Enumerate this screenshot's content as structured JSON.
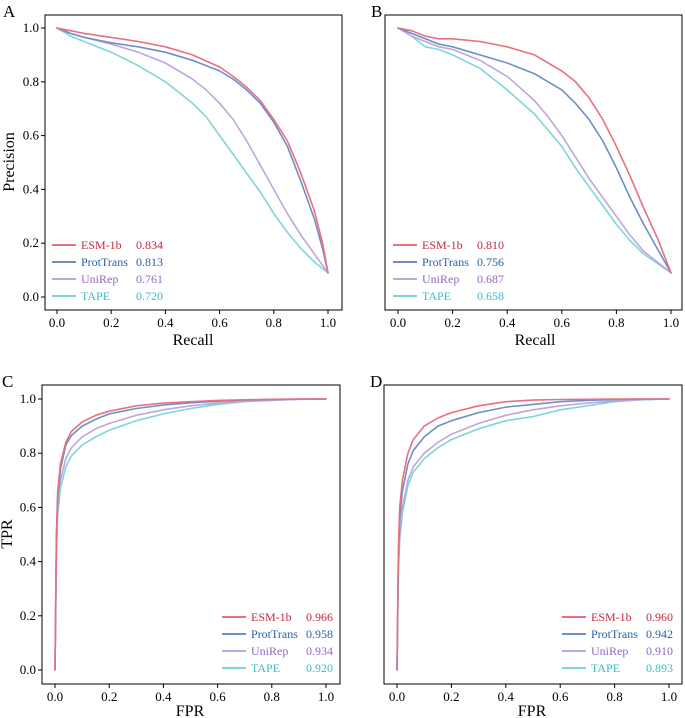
{
  "colors": {
    "ESM-1b": "#e8707f",
    "ProtTrans": "#6d8fc4",
    "UniRep": "#bda7dc",
    "TAPE": "#7fd6d9"
  },
  "label_colors": {
    "ESM-1b": "#c8283e",
    "ProtTrans": "#2c5fa8",
    "UniRep": "#9468c0",
    "TAPE": "#3bbcc4"
  },
  "chart_data": [
    {
      "panel": "A",
      "type": "line",
      "xlabel": "Recall",
      "ylabel": "Precision",
      "xlim": [
        0,
        1
      ],
      "ylim": [
        0,
        1
      ],
      "xticks": [
        "0.0",
        "0.2",
        "0.4",
        "0.6",
        "0.8",
        "1.0"
      ],
      "yticks": [
        "0.0",
        "0.2",
        "0.4",
        "0.6",
        "0.8",
        "1.0"
      ],
      "legend_position": "bottom-left",
      "series": [
        {
          "name": "ESM-1b",
          "score": "0.834",
          "x": [
            0,
            0.05,
            0.1,
            0.2,
            0.3,
            0.4,
            0.5,
            0.6,
            0.65,
            0.7,
            0.75,
            0.8,
            0.85,
            0.9,
            0.95,
            0.98,
            1.0
          ],
          "y": [
            1.0,
            0.99,
            0.98,
            0.965,
            0.95,
            0.93,
            0.9,
            0.855,
            0.82,
            0.78,
            0.73,
            0.66,
            0.58,
            0.46,
            0.32,
            0.2,
            0.09
          ]
        },
        {
          "name": "ProtTrans",
          "score": "0.813",
          "x": [
            0,
            0.05,
            0.1,
            0.2,
            0.3,
            0.4,
            0.5,
            0.6,
            0.65,
            0.7,
            0.75,
            0.8,
            0.85,
            0.9,
            0.95,
            0.98,
            1.0
          ],
          "y": [
            1.0,
            0.98,
            0.965,
            0.945,
            0.93,
            0.91,
            0.88,
            0.84,
            0.81,
            0.77,
            0.72,
            0.65,
            0.56,
            0.43,
            0.29,
            0.18,
            0.09
          ]
        },
        {
          "name": "UniRep",
          "score": "0.761",
          "x": [
            0,
            0.05,
            0.1,
            0.2,
            0.3,
            0.4,
            0.5,
            0.55,
            0.6,
            0.65,
            0.7,
            0.75,
            0.8,
            0.85,
            0.9,
            0.95,
            1.0
          ],
          "y": [
            1.0,
            0.98,
            0.965,
            0.94,
            0.91,
            0.87,
            0.81,
            0.77,
            0.72,
            0.66,
            0.58,
            0.49,
            0.4,
            0.31,
            0.23,
            0.16,
            0.09
          ]
        },
        {
          "name": "TAPE",
          "score": "0.720",
          "x": [
            0,
            0.05,
            0.1,
            0.2,
            0.3,
            0.4,
            0.5,
            0.55,
            0.6,
            0.65,
            0.7,
            0.75,
            0.8,
            0.85,
            0.9,
            0.95,
            1.0
          ],
          "y": [
            1.0,
            0.97,
            0.95,
            0.91,
            0.86,
            0.8,
            0.72,
            0.67,
            0.6,
            0.53,
            0.46,
            0.39,
            0.31,
            0.24,
            0.18,
            0.13,
            0.09
          ]
        }
      ]
    },
    {
      "panel": "B",
      "type": "line",
      "xlabel": "Recall",
      "ylabel": "",
      "xlim": [
        0,
        1
      ],
      "ylim": [
        0,
        1
      ],
      "xticks": [
        "0.0",
        "0.2",
        "0.4",
        "0.6",
        "0.8",
        "1.0"
      ],
      "yticks": [],
      "legend_position": "bottom-left",
      "series": [
        {
          "name": "ESM-1b",
          "score": "0.810",
          "x": [
            0,
            0.05,
            0.1,
            0.15,
            0.2,
            0.3,
            0.4,
            0.5,
            0.6,
            0.65,
            0.7,
            0.75,
            0.8,
            0.85,
            0.9,
            0.95,
            1.0
          ],
          "y": [
            1.0,
            0.99,
            0.97,
            0.96,
            0.96,
            0.95,
            0.93,
            0.9,
            0.84,
            0.8,
            0.74,
            0.66,
            0.56,
            0.45,
            0.33,
            0.22,
            0.09
          ]
        },
        {
          "name": "ProtTrans",
          "score": "0.756",
          "x": [
            0,
            0.05,
            0.1,
            0.15,
            0.2,
            0.3,
            0.4,
            0.5,
            0.6,
            0.65,
            0.7,
            0.75,
            0.8,
            0.85,
            0.9,
            0.95,
            1.0
          ],
          "y": [
            1.0,
            0.98,
            0.96,
            0.94,
            0.93,
            0.9,
            0.87,
            0.83,
            0.77,
            0.72,
            0.66,
            0.58,
            0.48,
            0.37,
            0.27,
            0.18,
            0.09
          ]
        },
        {
          "name": "UniRep",
          "score": "0.687",
          "x": [
            0,
            0.05,
            0.1,
            0.15,
            0.2,
            0.3,
            0.4,
            0.5,
            0.55,
            0.6,
            0.65,
            0.7,
            0.75,
            0.8,
            0.85,
            0.9,
            1.0
          ],
          "y": [
            1.0,
            0.97,
            0.95,
            0.93,
            0.92,
            0.88,
            0.82,
            0.73,
            0.67,
            0.6,
            0.52,
            0.44,
            0.37,
            0.3,
            0.23,
            0.17,
            0.09
          ]
        },
        {
          "name": "TAPE",
          "score": "0.658",
          "x": [
            0,
            0.05,
            0.1,
            0.15,
            0.2,
            0.3,
            0.4,
            0.5,
            0.55,
            0.6,
            0.65,
            0.7,
            0.75,
            0.8,
            0.85,
            0.9,
            1.0
          ],
          "y": [
            1.0,
            0.97,
            0.93,
            0.92,
            0.9,
            0.85,
            0.77,
            0.68,
            0.62,
            0.56,
            0.48,
            0.41,
            0.34,
            0.27,
            0.21,
            0.16,
            0.09
          ]
        }
      ]
    },
    {
      "panel": "C",
      "type": "line",
      "xlabel": "FPR",
      "ylabel": "TPR",
      "xlim": [
        0,
        1
      ],
      "ylim": [
        0,
        1
      ],
      "xticks": [
        "0.0",
        "0.2",
        "0.4",
        "0.6",
        "0.8",
        "1.0"
      ],
      "yticks": [
        "0.0",
        "0.2",
        "0.4",
        "0.6",
        "0.8",
        "1.0"
      ],
      "legend_position": "bottom-right",
      "series": [
        {
          "name": "ESM-1b",
          "score": "0.966",
          "x": [
            0,
            0.005,
            0.01,
            0.02,
            0.04,
            0.06,
            0.1,
            0.15,
            0.2,
            0.3,
            0.4,
            0.5,
            0.6,
            0.7,
            0.8,
            0.9,
            1.0
          ],
          "y": [
            0,
            0.5,
            0.66,
            0.76,
            0.84,
            0.88,
            0.915,
            0.94,
            0.955,
            0.975,
            0.985,
            0.99,
            0.995,
            0.997,
            0.999,
            1.0,
            1.0
          ]
        },
        {
          "name": "ProtTrans",
          "score": "0.958",
          "x": [
            0,
            0.005,
            0.01,
            0.02,
            0.04,
            0.06,
            0.1,
            0.15,
            0.2,
            0.3,
            0.4,
            0.5,
            0.6,
            0.7,
            0.8,
            0.9,
            1.0
          ],
          "y": [
            0,
            0.48,
            0.64,
            0.74,
            0.83,
            0.865,
            0.9,
            0.925,
            0.945,
            0.965,
            0.978,
            0.986,
            0.992,
            0.996,
            0.998,
            1.0,
            1.0
          ]
        },
        {
          "name": "UniRep",
          "score": "0.934",
          "x": [
            0,
            0.005,
            0.01,
            0.02,
            0.04,
            0.06,
            0.1,
            0.15,
            0.2,
            0.3,
            0.4,
            0.5,
            0.6,
            0.7,
            0.8,
            0.9,
            1.0
          ],
          "y": [
            0,
            0.45,
            0.6,
            0.7,
            0.78,
            0.82,
            0.86,
            0.89,
            0.91,
            0.94,
            0.96,
            0.975,
            0.985,
            0.992,
            0.996,
            0.999,
            1.0
          ]
        },
        {
          "name": "TAPE",
          "score": "0.920",
          "x": [
            0,
            0.005,
            0.01,
            0.02,
            0.04,
            0.06,
            0.1,
            0.15,
            0.2,
            0.3,
            0.4,
            0.5,
            0.6,
            0.7,
            0.8,
            0.9,
            1.0
          ],
          "y": [
            0,
            0.42,
            0.57,
            0.67,
            0.75,
            0.79,
            0.83,
            0.86,
            0.885,
            0.92,
            0.945,
            0.965,
            0.98,
            0.99,
            0.995,
            0.999,
            1.0
          ]
        }
      ]
    },
    {
      "panel": "D",
      "type": "line",
      "xlabel": "FPR",
      "ylabel": "",
      "xlim": [
        0,
        1
      ],
      "ylim": [
        0,
        1
      ],
      "xticks": [
        "0.0",
        "0.2",
        "0.4",
        "0.6",
        "0.8",
        "1.0"
      ],
      "yticks": [],
      "legend_position": "bottom-right",
      "series": [
        {
          "name": "ESM-1b",
          "score": "0.960",
          "x": [
            0,
            0.005,
            0.01,
            0.02,
            0.04,
            0.06,
            0.1,
            0.15,
            0.2,
            0.3,
            0.4,
            0.5,
            0.6,
            0.7,
            0.8,
            0.9,
            1.0
          ],
          "y": [
            0,
            0.45,
            0.6,
            0.7,
            0.8,
            0.85,
            0.9,
            0.93,
            0.95,
            0.975,
            0.99,
            0.996,
            0.998,
            0.999,
            1.0,
            1.0,
            1.0
          ]
        },
        {
          "name": "ProtTrans",
          "score": "0.942",
          "x": [
            0,
            0.005,
            0.01,
            0.02,
            0.04,
            0.06,
            0.1,
            0.15,
            0.2,
            0.3,
            0.4,
            0.5,
            0.6,
            0.7,
            0.8,
            0.9,
            1.0
          ],
          "y": [
            0,
            0.42,
            0.56,
            0.66,
            0.76,
            0.81,
            0.86,
            0.9,
            0.92,
            0.95,
            0.97,
            0.98,
            0.99,
            0.995,
            0.998,
            1.0,
            1.0
          ]
        },
        {
          "name": "UniRep",
          "score": "0.910",
          "x": [
            0,
            0.005,
            0.01,
            0.02,
            0.04,
            0.06,
            0.1,
            0.15,
            0.2,
            0.3,
            0.4,
            0.5,
            0.6,
            0.7,
            0.8,
            0.9,
            1.0
          ],
          "y": [
            0,
            0.38,
            0.5,
            0.6,
            0.7,
            0.75,
            0.8,
            0.84,
            0.87,
            0.91,
            0.94,
            0.96,
            0.975,
            0.985,
            0.993,
            0.998,
            1.0
          ]
        },
        {
          "name": "TAPE",
          "score": "0.893",
          "x": [
            0,
            0.005,
            0.01,
            0.02,
            0.04,
            0.06,
            0.1,
            0.15,
            0.2,
            0.3,
            0.4,
            0.5,
            0.6,
            0.7,
            0.8,
            0.9,
            1.0
          ],
          "y": [
            0,
            0.36,
            0.48,
            0.58,
            0.68,
            0.73,
            0.78,
            0.82,
            0.85,
            0.89,
            0.92,
            0.935,
            0.96,
            0.975,
            0.99,
            0.997,
            1.0
          ]
        }
      ]
    }
  ]
}
